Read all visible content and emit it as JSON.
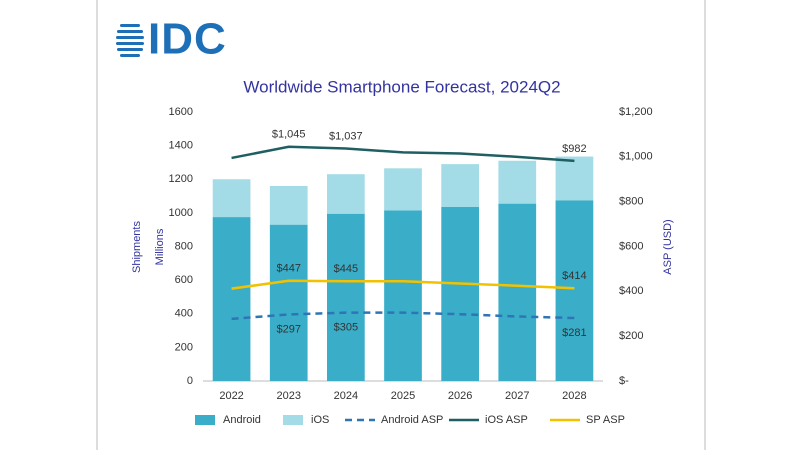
{
  "chart_data": {
    "type": "bar",
    "stacked": true,
    "logo": "IDC",
    "title": "Worldwide Smartphone Forecast, 2024Q2",
    "categories": [
      "2022",
      "2023",
      "2024",
      "2025",
      "2026",
      "2027",
      "2028"
    ],
    "series": [
      {
        "name": "Android",
        "type": "bar",
        "color": "#3aaec8",
        "values": [
          975,
          930,
          995,
          1015,
          1035,
          1055,
          1075
        ]
      },
      {
        "name": "iOS",
        "type": "bar",
        "color": "#a3dbe6",
        "values": [
          225,
          230,
          235,
          250,
          255,
          255,
          260
        ]
      },
      {
        "name": "Android ASP",
        "type": "line",
        "axis": "y2",
        "dashed": true,
        "color": "#2e75b6",
        "values": [
          277,
          297,
          305,
          305,
          298,
          288,
          281
        ],
        "value_labels": [
          null,
          "$297",
          "$305",
          null,
          null,
          null,
          "$281"
        ]
      },
      {
        "name": "iOS ASP",
        "type": "line",
        "axis": "y2",
        "dashed": false,
        "color": "#1f5f62",
        "values": [
          995,
          1045,
          1037,
          1020,
          1015,
          1000,
          982
        ],
        "value_labels": [
          null,
          "$1,045",
          "$1,037",
          null,
          null,
          null,
          "$982"
        ]
      },
      {
        "name": "SP ASP",
        "type": "line",
        "axis": "y2",
        "dashed": false,
        "color": "#f2c200",
        "values": [
          412,
          447,
          445,
          445,
          435,
          425,
          414
        ],
        "value_labels": [
          null,
          "$447",
          "$445",
          null,
          null,
          null,
          "$414"
        ]
      }
    ],
    "ylim": [
      0,
      1600
    ],
    "yticks": [
      0,
      200,
      400,
      600,
      800,
      1000,
      1200,
      1400,
      1600
    ],
    "y2lim": [
      0,
      1200
    ],
    "y2ticks": [
      {
        "value": 0,
        "label": "$-"
      },
      {
        "value": 200,
        "label": "$200"
      },
      {
        "value": 400,
        "label": "$400"
      },
      {
        "value": 600,
        "label": "$600"
      },
      {
        "value": 800,
        "label": "$800"
      },
      {
        "value": 1000,
        "label": "$1,000"
      },
      {
        "value": 1200,
        "label": "$1,200"
      }
    ],
    "y_label": "Millions",
    "y_outer_label": "Shipments",
    "y2_label": "ASP (USD)"
  }
}
